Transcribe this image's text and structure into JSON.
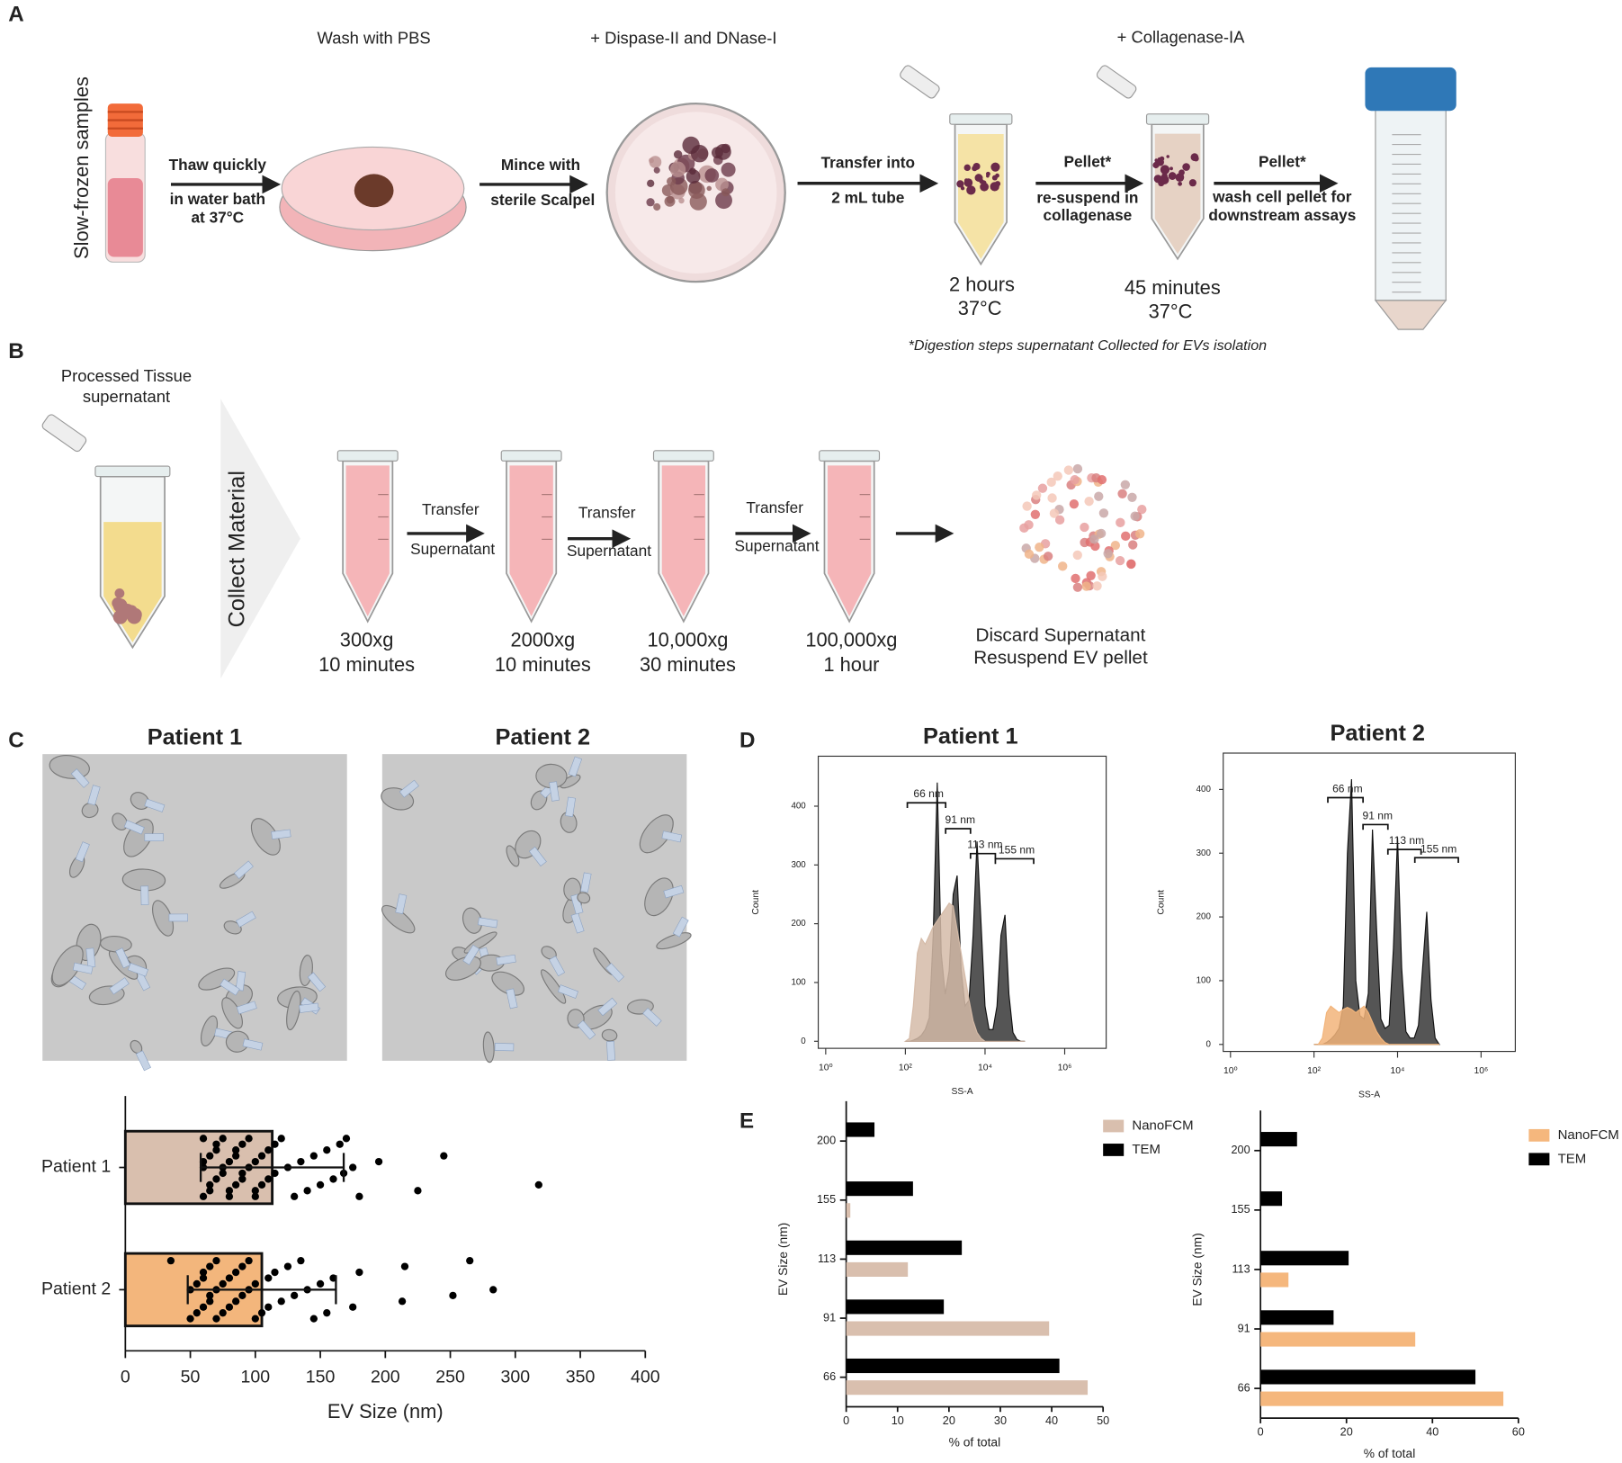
{
  "panel_labels": {
    "a": "A",
    "b": "B",
    "c": "C",
    "d": "D",
    "e": "E"
  },
  "panel_a": {
    "sample_label": "Slow-frozen samples",
    "thaw": [
      "Thaw quickly",
      "in water bath",
      "at 37°C"
    ],
    "wash": "Wash with PBS",
    "mince": [
      "Mince with",
      "sterile Scalpel"
    ],
    "dispase": "+ Dispase-II and DNase-I",
    "transfer": [
      "Transfer into",
      "2 mL tube"
    ],
    "time_1": [
      "2 hours",
      "37°C"
    ],
    "pellet_1": [
      "Pellet*",
      "re-suspend in",
      "collagenase"
    ],
    "collagenase": "+ Collagenase-IA",
    "time_2": [
      "45 minutes",
      "37°C"
    ],
    "pellet_2": [
      "Pellet*",
      "wash cell pellet for",
      "downstream assays"
    ],
    "footnote": "*Digestion steps supernatant Collected for EVs isolation"
  },
  "panel_b": {
    "source": [
      "Processed Tissue",
      "supernatant"
    ],
    "collect": "Collect Material",
    "spins": [
      [
        "300xg",
        "10 minutes"
      ],
      [
        "2000xg",
        "10 minutes"
      ],
      [
        "10,000xg",
        "30 minutes"
      ],
      [
        "100,000xg",
        "1 hour"
      ]
    ],
    "transfers": [
      [
        "Transfer",
        "Supernatant"
      ],
      [
        "Transfer",
        "Supernatant"
      ],
      [
        "Transfer",
        "Supernatant"
      ]
    ],
    "result": [
      "Discard Supernatant",
      "Resuspend EV pellet"
    ]
  },
  "panel_c": {
    "image_titles": [
      "Patient 1",
      "Patient 2"
    ]
  },
  "chart_data": [
    {
      "type": "bar",
      "orientation": "horizontal",
      "categories": [
        "Patient 1",
        "Patient 2"
      ],
      "values": [
        113,
        105
      ],
      "errors": [
        55,
        57
      ],
      "colors": [
        "#d9bfae",
        "#f3b67c"
      ],
      "points": [
        [
          60,
          60,
          60,
          60,
          65,
          65,
          65,
          70,
          70,
          70,
          75,
          75,
          75,
          80,
          80,
          80,
          85,
          85,
          85,
          90,
          90,
          90,
          95,
          95,
          100,
          100,
          100,
          105,
          105,
          110,
          110,
          115,
          115,
          120,
          125,
          130,
          135,
          140,
          145,
          150,
          155,
          160,
          165,
          168,
          170,
          175,
          180,
          195,
          225,
          245,
          318
        ],
        [
          35,
          50,
          50,
          55,
          55,
          60,
          60,
          60,
          65,
          65,
          65,
          70,
          70,
          70,
          75,
          75,
          80,
          80,
          85,
          85,
          90,
          90,
          95,
          95,
          100,
          100,
          105,
          110,
          110,
          115,
          120,
          125,
          130,
          135,
          140,
          145,
          150,
          155,
          160,
          175,
          180,
          213,
          215,
          252,
          265,
          283
        ]
      ],
      "xlabel": "EV Size (nm)",
      "xlim": [
        0,
        400
      ],
      "xticks": [
        0,
        50,
        100,
        150,
        200,
        250,
        300,
        350,
        400
      ]
    },
    {
      "type": "area",
      "title": "Patient 1",
      "xlabel": "SS-A",
      "ylabel": "Count",
      "xscale": "log",
      "x": [
        100,
        126,
        158,
        200,
        251,
        316,
        398,
        501,
        631,
        794,
        1000,
        1259,
        1585,
        1995,
        2512,
        3162,
        3981,
        5012,
        6310,
        7943,
        10000,
        12589,
        15849,
        19953,
        25119,
        31623,
        39811,
        50119,
        63096,
        79433,
        100000
      ],
      "series": [
        {
          "color": "#555555",
          "values": [
            0,
            0,
            2,
            5,
            10,
            20,
            40,
            180,
            440,
            150,
            80,
            120,
            250,
            282,
            120,
            60,
            70,
            180,
            340,
            200,
            60,
            20,
            20,
            60,
            180,
            215,
            80,
            15,
            3,
            0,
            0
          ]
        },
        {
          "color": "#d5bba8",
          "values": [
            0,
            5,
            60,
            150,
            175,
            165,
            180,
            195,
            205,
            215,
            225,
            235,
            230,
            190,
            150,
            110,
            70,
            35,
            15,
            5,
            0,
            0,
            0,
            0,
            0,
            0,
            0,
            0,
            0,
            0,
            0
          ]
        }
      ],
      "annotations": [
        "66 nm",
        "91 nm",
        "113 nm",
        "155 nm"
      ],
      "xlim": [
        0.65,
        11000000
      ],
      "xticks": [
        {
          "value": 1,
          "label": "10⁰"
        },
        {
          "value": 100,
          "label": "10²"
        },
        {
          "value": 10000,
          "label": "10⁴"
        },
        {
          "value": 1000000,
          "label": "10⁶"
        }
      ],
      "ylim": [
        -12,
        485
      ],
      "yticks": [
        0,
        100,
        200,
        300,
        400
      ]
    },
    {
      "type": "area",
      "title": "Patient 2",
      "xlabel": "SS-A",
      "ylabel": "Count",
      "xscale": "log",
      "x": [
        100,
        126,
        158,
        200,
        251,
        316,
        398,
        501,
        631,
        794,
        1000,
        1259,
        1585,
        1995,
        2512,
        3162,
        3981,
        5012,
        6310,
        7943,
        10000,
        12589,
        15849,
        19953,
        25119,
        31623,
        39811,
        50119,
        63096,
        79433,
        100000
      ],
      "series": [
        {
          "color": "#555555",
          "values": [
            0,
            0,
            0,
            3,
            8,
            15,
            25,
            60,
            300,
            416,
            100,
            45,
            40,
            80,
            337,
            180,
            40,
            25,
            30,
            150,
            325,
            120,
            20,
            10,
            10,
            30,
            120,
            208,
            70,
            10,
            0
          ]
        },
        {
          "color": "#f2b47a",
          "values": [
            0,
            0,
            10,
            50,
            60,
            55,
            50,
            55,
            58,
            55,
            50,
            55,
            60,
            50,
            35,
            20,
            10,
            3,
            0,
            0,
            0,
            0,
            0,
            0,
            0,
            0,
            0,
            0,
            0,
            0,
            0
          ]
        }
      ],
      "annotations": [
        "66 nm",
        "91 nm",
        "113 nm",
        "155 nm"
      ],
      "xlim": [
        0.67,
        6600000
      ],
      "xticks": [
        {
          "value": 1,
          "label": "10⁰"
        },
        {
          "value": 100,
          "label": "10²"
        },
        {
          "value": 10000,
          "label": "10⁴"
        },
        {
          "value": 1000000,
          "label": "10⁶"
        }
      ],
      "ylim": [
        -11,
        457
      ],
      "yticks": [
        0,
        100,
        200,
        300,
        400
      ]
    },
    {
      "type": "bar",
      "orientation": "horizontal",
      "categories": [
        "200",
        "155",
        "113",
        "91",
        "66"
      ],
      "series": [
        {
          "name": "NanoFCM",
          "color": "#d9bfae",
          "values": [
            0,
            0.8,
            12,
            39.5,
            47
          ]
        },
        {
          "name": "TEM",
          "color": "#000000",
          "values": [
            5.5,
            13,
            22.5,
            19,
            41.5
          ]
        }
      ],
      "xlabel": "% of total",
      "ylabel": "EV Size (nm)",
      "legend": "upper right",
      "xlim": [
        0,
        50
      ],
      "xticks": [
        0,
        10,
        20,
        30,
        40,
        50
      ]
    },
    {
      "type": "bar",
      "orientation": "horizontal",
      "categories": [
        "200",
        "155",
        "113",
        "91",
        "66"
      ],
      "series": [
        {
          "name": "NanoFCM",
          "color": "#f5b77d",
          "values": [
            0,
            0,
            6.5,
            36,
            56.5
          ]
        },
        {
          "name": "TEM",
          "color": "#000000",
          "values": [
            8.5,
            5,
            20.5,
            17,
            50
          ]
        }
      ],
      "xlabel": "% of total",
      "ylabel": "EV Size (nm)",
      "legend": "upper right",
      "xlim": [
        0,
        60
      ],
      "xticks": [
        0,
        20,
        40,
        60
      ]
    }
  ]
}
